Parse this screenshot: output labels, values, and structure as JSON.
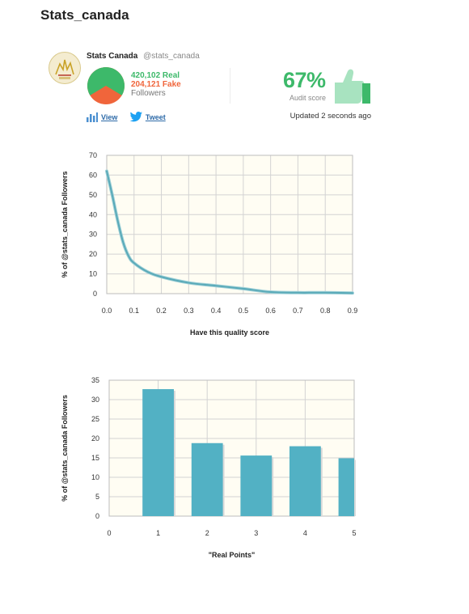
{
  "page": {
    "title": "Stats_canada"
  },
  "profile": {
    "name": "Stats Canada",
    "handle": "@stats_canada",
    "real_followers": "420,102 Real",
    "fake_followers": "204,121 Fake",
    "followers_label": "Followers",
    "real_fraction": 0.673,
    "audit_score": "67%",
    "audit_label": "Audit score",
    "view_label": "View",
    "tweet_label": "Tweet",
    "updated": "Updated 2 seconds ago"
  },
  "colors": {
    "real": "#3db96a",
    "fake": "#f0653b",
    "line": "#5aaab8",
    "bar": "#52b1c4",
    "plot_bg": "#fffdf3",
    "grid": "#d3d3d3",
    "link": "#2d6aa8"
  },
  "icons": {
    "avatar": "maple-leaf-logo",
    "view": "bar-chart-icon",
    "tweet": "twitter-bird-icon",
    "audit": "thumbs-up-icon"
  },
  "chart_data": [
    {
      "type": "line",
      "title": "",
      "xlabel": "Have this quality score",
      "ylabel": "% of @stats_canada Followers",
      "xlim": [
        0,
        0.9
      ],
      "ylim": [
        0,
        70
      ],
      "x_ticks": [
        "0.0",
        "0.1",
        "0.2",
        "0.3",
        "0.4",
        "0.5",
        "0.6",
        "0.7",
        "0.8",
        "0.9"
      ],
      "y_ticks": [
        "0",
        "10",
        "20",
        "30",
        "40",
        "50",
        "60",
        "70"
      ],
      "grid": true,
      "series": [
        {
          "x": [
            0,
            0.02,
            0.04,
            0.06,
            0.08,
            0.1,
            0.15,
            0.2,
            0.3,
            0.4,
            0.5,
            0.6,
            0.7,
            0.8,
            0.9
          ],
          "values": [
            62,
            50,
            37,
            26,
            19,
            15.5,
            11,
            8.5,
            5.5,
            4,
            2.5,
            0.8,
            0.5,
            0.5,
            0.3
          ]
        }
      ]
    },
    {
      "type": "bar",
      "title": "",
      "xlabel": "\"Real Points\"",
      "ylabel": "% of @stats_canada Followers",
      "xlim": [
        0,
        5
      ],
      "ylim": [
        0,
        35
      ],
      "x_ticks": [
        "0",
        "1",
        "2",
        "3",
        "4",
        "5"
      ],
      "y_ticks": [
        "0",
        "5",
        "10",
        "15",
        "20",
        "25",
        "30",
        "35"
      ],
      "grid": true,
      "x": [
        1,
        2,
        3,
        4,
        5
      ],
      "values": [
        32.7,
        18.8,
        15.6,
        18,
        14.9
      ]
    }
  ]
}
